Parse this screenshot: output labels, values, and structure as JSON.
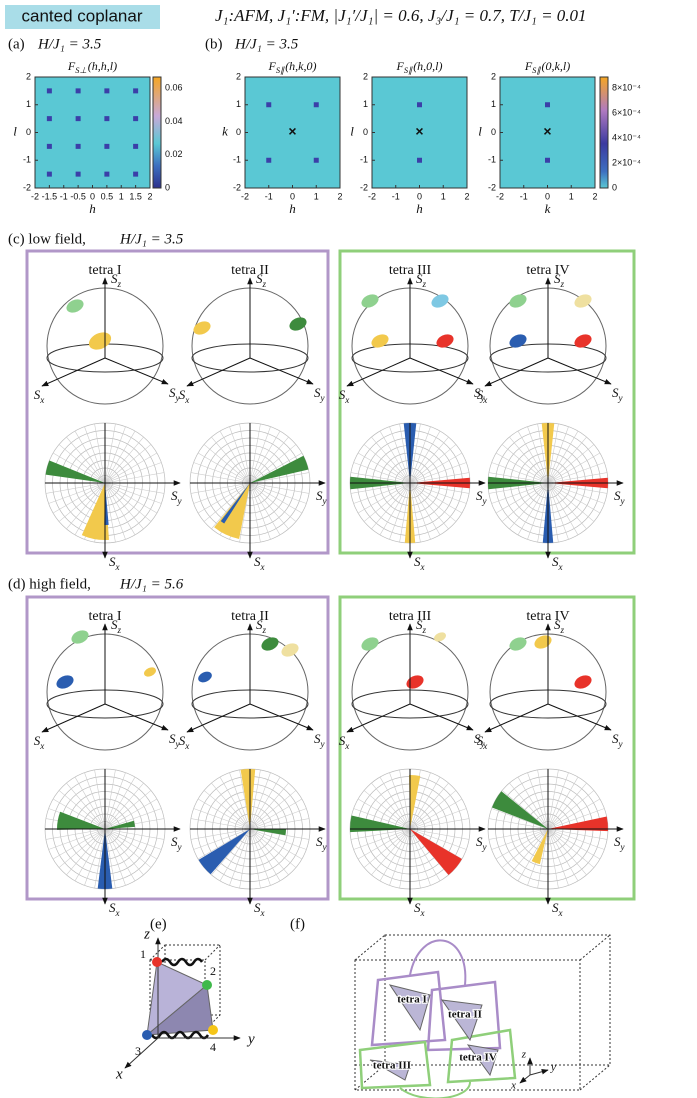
{
  "header": {
    "tag": "canted coplanar",
    "params": "J₁:AFM,  J₁′:FM,   |J₁′/J₁| = 0.6,  J₃/J₁ = 0.7,  T/J₁ = 0.01"
  },
  "panel_a": {
    "label": "(a)",
    "field": "H/J₁ = 3.5",
    "map": {
      "title": {
        "main": "F",
        "sub": "S⊥",
        "args": "(h,h,l)"
      },
      "xlabel": "h",
      "ylabel": "l",
      "xticks": [
        -2,
        -1.5,
        -1,
        -0.5,
        0,
        0.5,
        1,
        1.5,
        2
      ],
      "yticks": [
        2,
        1,
        0,
        -1,
        -2
      ]
    },
    "colorbar_ticks": [
      0,
      0.02,
      0.04,
      0.06
    ]
  },
  "panel_b": {
    "label": "(b)",
    "field": "H/J₁ = 3.5",
    "maps": [
      {
        "title": {
          "main": "F",
          "sub": "S∥",
          "args": "(h,k,0)"
        },
        "xlabel": "h",
        "ylabel": "k",
        "xticks": [
          -2,
          -1,
          0,
          1,
          2
        ],
        "yticks": [
          2,
          1,
          0,
          -1,
          -2
        ]
      },
      {
        "title": {
          "main": "F",
          "sub": "S∥",
          "args": "(h,0,l)"
        },
        "xlabel": "h",
        "ylabel": "l",
        "xticks": [
          -2,
          -1,
          0,
          1,
          2
        ],
        "yticks": [
          2,
          1,
          0,
          -1,
          -2
        ]
      },
      {
        "title": {
          "main": "F",
          "sub": "S∥",
          "args": "(0,k,l)"
        },
        "xlabel": "k",
        "ylabel": "l",
        "xticks": [
          -2,
          -1,
          0,
          1,
          2
        ],
        "yticks": [
          2,
          1,
          0,
          -1,
          -2
        ]
      }
    ],
    "colorbar_ticks": [
      "0",
      "2×10⁻⁴",
      "4×10⁻⁴",
      "6×10⁻⁴",
      "8×10⁻⁴"
    ]
  },
  "panel_c": {
    "label": "(c) low field,",
    "field": "H/J₁ = 3.5",
    "tetras": [
      "tetra I",
      "tetra II",
      "tetra III",
      "tetra IV"
    ]
  },
  "panel_d": {
    "label": "(d) high field,",
    "field": "H/J₁ = 5.6",
    "tetras": [
      "tetra I",
      "tetra II",
      "tetra III",
      "tetra IV"
    ]
  },
  "axes": {
    "symbol": "S",
    "z": "z",
    "x": "x",
    "y": "y"
  },
  "panel_e": {
    "label": "(e)",
    "z": "z",
    "x": "x",
    "y": "y",
    "sites": [
      "1",
      "2",
      "3",
      "4"
    ]
  },
  "panel_f": {
    "label": "(f)",
    "tetras": [
      "tetra I",
      "tetra II",
      "tetra III",
      "tetra IV"
    ],
    "x": "x",
    "y": "y",
    "z": "z"
  }
}
